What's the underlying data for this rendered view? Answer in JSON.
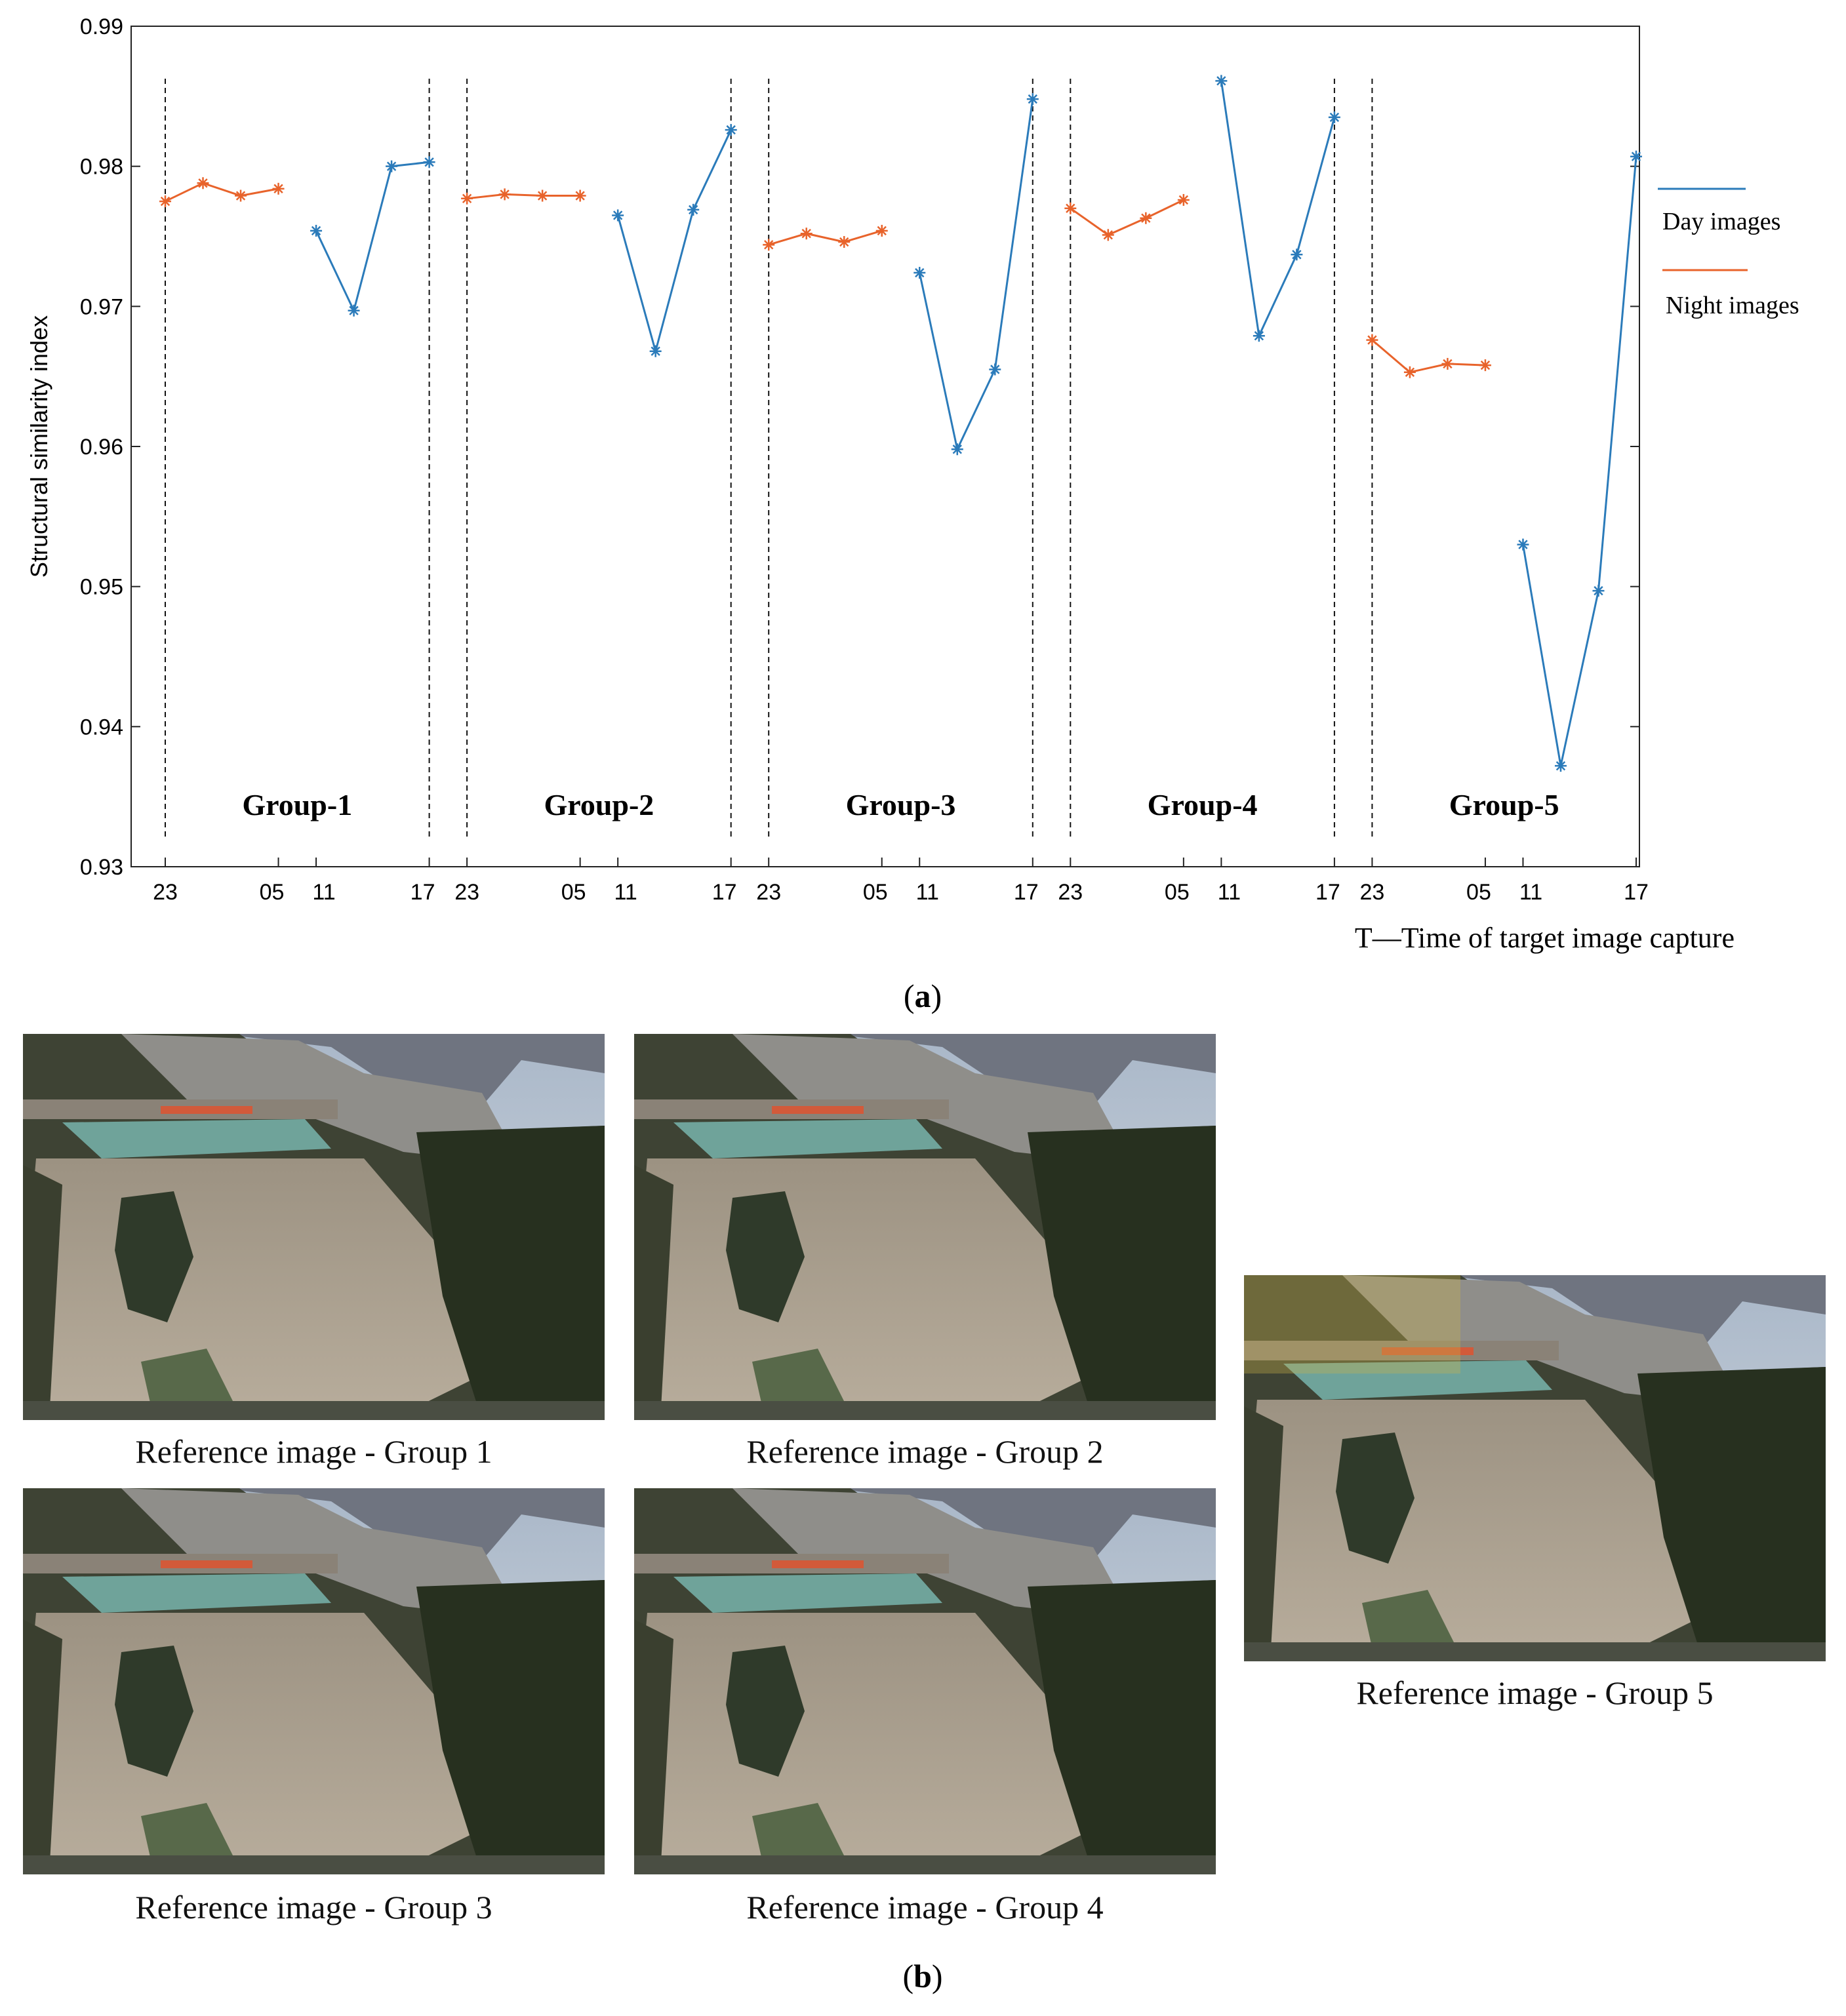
{
  "chart_data": {
    "type": "line",
    "ylabel": "Structural similarity index",
    "xlabel": "T—Time of target image capture",
    "ylim": [
      0.93,
      0.99
    ],
    "yticks": [
      "0.93",
      "0.94",
      "0.95",
      "0.96",
      "0.97",
      "0.98",
      "0.99"
    ],
    "xlim": [
      0,
      39
    ],
    "grid": false,
    "legend_position": "right",
    "xticks": [
      {
        "x": 0,
        "label": "23"
      },
      {
        "x": 3,
        "label": "05"
      },
      {
        "x": 4,
        "label": "11"
      },
      {
        "x": 7,
        "label": "17"
      },
      {
        "x": 8,
        "label": "23"
      },
      {
        "x": 11,
        "label": "05"
      },
      {
        "x": 12,
        "label": "11"
      },
      {
        "x": 15,
        "label": "17"
      },
      {
        "x": 16,
        "label": "23"
      },
      {
        "x": 19,
        "label": "05"
      },
      {
        "x": 20,
        "label": "11"
      },
      {
        "x": 23,
        "label": "17"
      },
      {
        "x": 24,
        "label": "23"
      },
      {
        "x": 27,
        "label": "05"
      },
      {
        "x": 28,
        "label": "11"
      },
      {
        "x": 31,
        "label": "17"
      },
      {
        "x": 32,
        "label": "23"
      },
      {
        "x": 35,
        "label": "05"
      },
      {
        "x": 36,
        "label": "11"
      },
      {
        "x": 39,
        "label": "17"
      }
    ],
    "group_separators": [
      0,
      7,
      8,
      15,
      16,
      23,
      24,
      31,
      32
    ],
    "groups": [
      {
        "label": "Group-1",
        "x_center": 3.5
      },
      {
        "label": "Group-2",
        "x_center": 11.5
      },
      {
        "label": "Group-3",
        "x_center": 19.5
      },
      {
        "label": "Group-4",
        "x_center": 27.5
      },
      {
        "label": "Group-5",
        "x_center": 35.5
      }
    ],
    "series": [
      {
        "name": "Day images",
        "color": "#2b7bba",
        "segments": [
          [
            [
              4,
              0.9754
            ],
            [
              5,
              0.9697
            ],
            [
              6,
              0.98
            ],
            [
              7,
              0.9803
            ]
          ],
          [
            [
              12,
              0.9765
            ],
            [
              13,
              0.9668
            ],
            [
              14,
              0.9769
            ],
            [
              15,
              0.9826
            ]
          ],
          [
            [
              20,
              0.9724
            ],
            [
              21,
              0.9598
            ],
            [
              22,
              0.9655
            ],
            [
              23,
              0.9848
            ]
          ],
          [
            [
              28,
              0.9861
            ],
            [
              29,
              0.9679
            ],
            [
              30,
              0.9737
            ],
            [
              31,
              0.9835
            ]
          ],
          [
            [
              36,
              0.953
            ],
            [
              37,
              0.9372
            ],
            [
              38,
              0.9497
            ],
            [
              39,
              0.9807
            ]
          ]
        ]
      },
      {
        "name": "Night images",
        "color": "#e8632b",
        "segments": [
          [
            [
              0,
              0.9775
            ],
            [
              1,
              0.9788
            ],
            [
              2,
              0.9779
            ],
            [
              3,
              0.9784
            ]
          ],
          [
            [
              8,
              0.9777
            ],
            [
              9,
              0.978
            ],
            [
              10,
              0.9779
            ],
            [
              11,
              0.9779
            ]
          ],
          [
            [
              16,
              0.9744
            ],
            [
              17,
              0.9752
            ],
            [
              18,
              0.9746
            ],
            [
              19,
              0.9754
            ]
          ],
          [
            [
              24,
              0.977
            ],
            [
              25,
              0.9751
            ],
            [
              26,
              0.9763
            ],
            [
              27,
              0.9776
            ]
          ],
          [
            [
              32,
              0.9676
            ],
            [
              33,
              0.9653
            ],
            [
              34,
              0.9659
            ],
            [
              35,
              0.9658
            ]
          ]
        ]
      }
    ]
  },
  "captions": {
    "a": "a",
    "b": "b"
  },
  "photos": [
    {
      "caption": "Reference image - Group 1"
    },
    {
      "caption": "Reference image - Group 2"
    },
    {
      "caption": "Reference image - Group 3"
    },
    {
      "caption": "Reference image - Group 4"
    },
    {
      "caption": "Reference image - Group 5"
    }
  ]
}
